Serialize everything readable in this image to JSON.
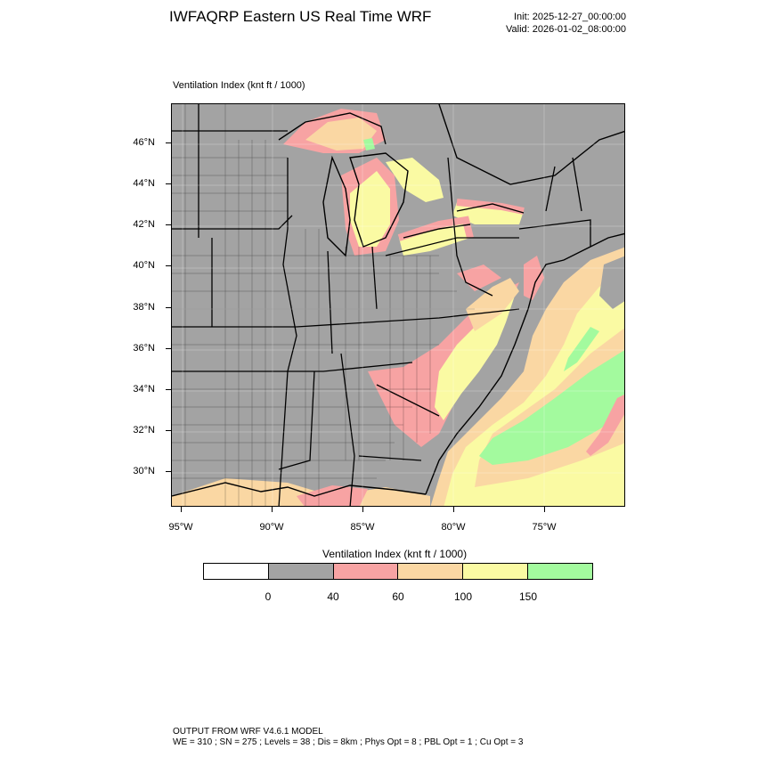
{
  "header": {
    "title": "IWFAQRP Eastern US Real Time WRF",
    "init": "Init: 2025-12-27_00:00:00",
    "valid": "Valid: 2026-01-02_08:00:00"
  },
  "field_label": "Ventilation Index   (knt ft / 1000)",
  "axes": {
    "lat_labels": [
      "46°N",
      "44°N",
      "42°N",
      "40°N",
      "38°N",
      "36°N",
      "34°N",
      "32°N",
      "30°N"
    ],
    "lon_labels": [
      "95°W",
      "90°W",
      "85°W",
      "80°W",
      "75°W"
    ]
  },
  "colorbar": {
    "title": "Ventilation Index  (knt ft / 1000)",
    "levels": [
      "0",
      "40",
      "60",
      "100",
      "150"
    ],
    "colors": [
      "#ffffff",
      "#a3a3a3",
      "#f7a3a3",
      "#fad7a3",
      "#fafaa3",
      "#a3fa9e"
    ]
  },
  "map_colors": {
    "land_low": "#a3a3a3",
    "pink": "#f7a3a3",
    "orange": "#fad7a3",
    "yellow": "#fafaa3",
    "green": "#a3fa9e"
  },
  "footer": {
    "line1": "OUTPUT FROM WRF V4.6.1 MODEL",
    "line2": "WE = 310 ; SN = 275 ; Levels = 38 ; Dis = 8km ; Phys Opt = 8 ; PBL Opt = 1 ; Cu Opt = 3"
  }
}
